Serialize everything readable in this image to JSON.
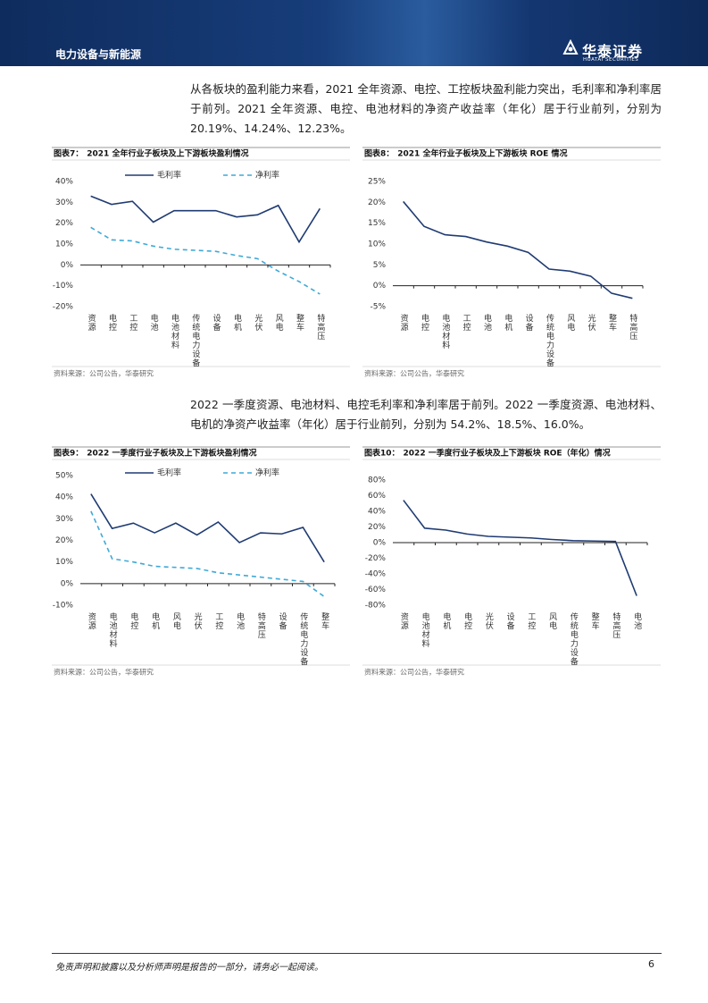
{
  "header": {
    "section": "电力设备与新能源",
    "brand": "华泰证券",
    "brand_en": "HUATAI SECURITIES"
  },
  "paragraphs": [
    "从各板块的盈利能力来看，2021 全年资源、电控、工控板块盈利能力突出，毛利率和净利率居于前列。2021 全年资源、电控、电池材料的净资产收益率（年化）居于行业前列，分别为 20.19%、14.24%、12.23%。",
    "2022 一季度资源、电池材料、电控毛利率和净利率居于前列。2022 一季度资源、电池材料、电机的净资产收益率（年化）居于行业前列，分别为 54.2%、18.5%、16.0%。"
  ],
  "chart_data": [
    {
      "type": "line",
      "label": "图表7：",
      "title": "2021 全年行业子板块及上下游板块盈利情况",
      "categories": [
        "资源",
        "电控",
        "工控",
        "电池",
        "电池材料",
        "传统电力设备",
        "设备",
        "电机",
        "光伏",
        "风电",
        "整车",
        "特高压"
      ],
      "series": [
        {
          "name": "毛利率",
          "color": "#1f3b73",
          "linestyle": "solid",
          "values": [
            33,
            29,
            30.5,
            20.5,
            26,
            26,
            26,
            23,
            24,
            28.5,
            11,
            27
          ]
        },
        {
          "name": "净利率",
          "color": "#3fa9d8",
          "linestyle": "dashed",
          "values": [
            18,
            12,
            11.5,
            9,
            7.5,
            7,
            6.5,
            4.5,
            3,
            -3,
            -8,
            -14
          ]
        }
      ],
      "ylim": [
        -20,
        40
      ],
      "yticks": [
        {
          "value": -20,
          "label": "-20%"
        },
        {
          "value": -10,
          "label": "-10%"
        },
        {
          "value": 0,
          "label": "0%"
        },
        {
          "value": 10,
          "label": "10%"
        },
        {
          "value": 20,
          "label": "20%"
        },
        {
          "value": 30,
          "label": "30%"
        },
        {
          "value": 40,
          "label": "40%"
        }
      ],
      "source": "资料来源：公司公告，华泰研究"
    },
    {
      "type": "line",
      "label": "图表8：",
      "title": "2021 全年行业子板块及上下游板块 ROE 情况",
      "categories": [
        "资源",
        "电控",
        "电池材料",
        "工控",
        "电池",
        "电机",
        "设备",
        "传统电力设备",
        "风电",
        "光伏",
        "整车",
        "特高压"
      ],
      "series": [
        {
          "color": "#1f3b73",
          "linestyle": "solid",
          "values": [
            20.19,
            14.24,
            12.23,
            11.8,
            10.5,
            9.5,
            8,
            4,
            3.5,
            2.3,
            -1.8,
            -3
          ]
        }
      ],
      "ylim": [
        -5,
        25
      ],
      "yticks": [
        {
          "value": -5,
          "label": "-5%"
        },
        {
          "value": 0,
          "label": "0%"
        },
        {
          "value": 5,
          "label": "5%"
        },
        {
          "value": 10,
          "label": "10%"
        },
        {
          "value": 15,
          "label": "15%"
        },
        {
          "value": 20,
          "label": "20%"
        },
        {
          "value": 25,
          "label": "25%"
        }
      ],
      "source": "资料来源：公司公告，华泰研究"
    },
    {
      "type": "line",
      "label": "图表9：",
      "title": "2022 一季度行业子板块及上下游板块盈利情况",
      "categories": [
        "资源",
        "电池材料",
        "电控",
        "电机",
        "风电",
        "光伏",
        "工控",
        "电池",
        "特高压",
        "设备",
        "传统电力设备",
        "整车"
      ],
      "series": [
        {
          "name": "毛利率",
          "color": "#1f3b73",
          "linestyle": "solid",
          "values": [
            41.5,
            25.5,
            28,
            23.5,
            28,
            22.5,
            28.5,
            19,
            23.5,
            23,
            26,
            10
          ]
        },
        {
          "name": "净利率",
          "color": "#3fa9d8",
          "linestyle": "dashed",
          "values": [
            33.5,
            11.5,
            10,
            8,
            7.5,
            7,
            5,
            4,
            3,
            2,
            1,
            -6
          ]
        }
      ],
      "ylim": [
        -10,
        50
      ],
      "yticks": [
        {
          "value": -10,
          "label": "-10%"
        },
        {
          "value": 0,
          "label": "0%"
        },
        {
          "value": 10,
          "label": "10%"
        },
        {
          "value": 20,
          "label": "20%"
        },
        {
          "value": 30,
          "label": "30%"
        },
        {
          "value": 40,
          "label": "40%"
        },
        {
          "value": 50,
          "label": "50%"
        }
      ],
      "source": "资料来源：公司公告，华泰研究"
    },
    {
      "type": "line",
      "label": "图表10：",
      "title": "2022 一季度行业子板块及上下游板块 ROE（年化）情况",
      "categories": [
        "资源",
        "电池材料",
        "电机",
        "电控",
        "光伏",
        "设备",
        "工控",
        "风电",
        "传统电力设备",
        "整车",
        "特高压",
        "电池"
      ],
      "series": [
        {
          "color": "#1f3b73",
          "linestyle": "solid",
          "values": [
            54.2,
            18.5,
            16.0,
            11,
            8,
            7,
            6,
            4,
            2.5,
            2,
            1.5,
            -68
          ]
        }
      ],
      "ylim": [
        -80,
        80
      ],
      "yticks": [
        {
          "value": -80,
          "label": "-80%"
        },
        {
          "value": -60,
          "label": "-60%"
        },
        {
          "value": -40,
          "label": "-40%"
        },
        {
          "value": -20,
          "label": "-20%"
        },
        {
          "value": 0,
          "label": "0%"
        },
        {
          "value": 20,
          "label": "20%"
        },
        {
          "value": 40,
          "label": "40%"
        },
        {
          "value": 60,
          "label": "60%"
        },
        {
          "value": 80,
          "label": "80%"
        }
      ],
      "source": "资料来源：公司公告，华泰研究"
    }
  ],
  "footer": {
    "disclaimer": "免责声明和披露以及分析师声明是报告的一部分，请务必一起阅读。",
    "page": 6
  }
}
